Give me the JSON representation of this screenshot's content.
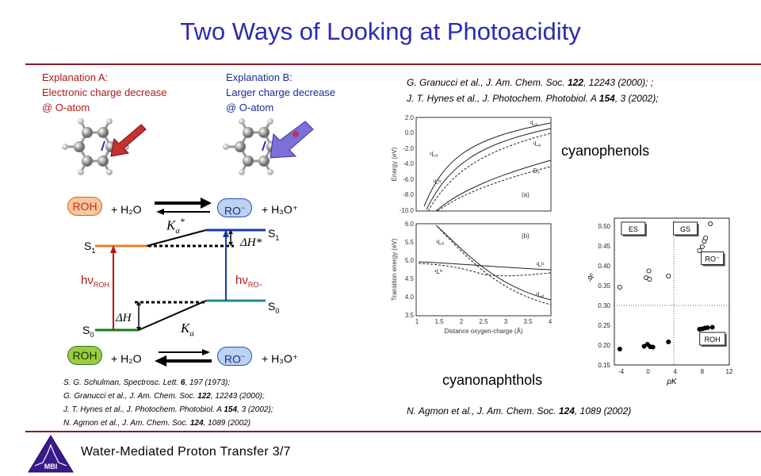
{
  "slide": {
    "title": "Two Ways of Looking at Photoacidity",
    "footer": "Water-Mediated Proton Transfer 3/7",
    "logo_text": "MBI"
  },
  "explanation_a": {
    "line1": "Explanation A:",
    "line2": "Electronic charge decrease",
    "line3": "@ O-atom"
  },
  "explanation_b": {
    "line1": "Explanation B:",
    "line2": "Larger charge decrease",
    "line3": "@ O-atom"
  },
  "references_top": [
    {
      "pre": "G. Granucci et al., J. Am. Chem. Soc. ",
      "vol": "122",
      "post": ", 12243 (2000); ;"
    },
    {
      "pre": "J. T. Hynes et al., J. Photochem. Photobiol. A ",
      "vol": "154",
      "post": ", 3 (2002);"
    }
  ],
  "references_bottom": [
    {
      "pre": "S. G. Schulman, Spectrosc. Lett. ",
      "vol": "6",
      "post": ", 197 (1973);"
    },
    {
      "pre": "G. Granucci et al., J. Am. Chem. Soc. ",
      "vol": "122",
      "post": ", 12243 (2000);"
    },
    {
      "pre": "J. T. Hynes et al., J. Photochem. Photobiol. A ",
      "vol": "154",
      "post": ", 3 (2002);"
    },
    {
      "pre": "N. Agmon et al., J. Am. Chem. Soc. ",
      "vol": "124",
      "post": ", 1089 (2002)"
    }
  ],
  "reference_right": {
    "pre": "N. Agmon et al., J. Am. Chem. Soc. ",
    "vol": "124",
    "post": ", 1089 (2002)"
  },
  "labels": {
    "cyanophenols": "cyanophenols",
    "cyanonaphthols": "cyanonaphthols"
  },
  "forster_cycle": {
    "roh": "ROH",
    "ro_minus": "RO",
    "h2o": "+ H₂O",
    "h3o": "+ H₃O⁺",
    "ka_star": "K",
    "ka": "K",
    "dh_star": "ΔH*",
    "dh": "ΔH",
    "s1": "S",
    "s0": "S",
    "hv_roh": "hν",
    "hv_ro": "hν",
    "sub_roh": "ROH",
    "sub_ro": "RO−",
    "colors": {
      "roh_fill": "#f7c6a0",
      "roh_border": "#e06010",
      "ro_fill": "#bcd2ee",
      "ro_border": "#2050c0",
      "roh_green_fill": "#9ccc3c",
      "roh_green_border": "#2a7a2a"
    }
  },
  "energy_plot": {
    "panel_a": {
      "yticks": [
        "2.0",
        "0.0",
        "-2.0",
        "-4.0",
        "-6.0",
        "-8.0",
        "-10.0"
      ],
      "ylabel": "Energy (eV)",
      "tag": "(a)",
      "curve_labels": [
        "¹Lₐ",
        "¹Lₐ",
        "¹Lₐ",
        "¹Lᵇ",
        "S₀"
      ]
    },
    "panel_b": {
      "yticks": [
        "6.0",
        "5.5",
        "5.0",
        "4.5",
        "4.0",
        "3.5"
      ],
      "ylabel": "Transition energy (eV)",
      "tag": "(b)",
      "curve_labels": [
        "¹Lₐ",
        "¹Lᵇ",
        "¹Lᵇ",
        "¹Lₐ"
      ]
    },
    "xticks": [
      "1",
      "1.5",
      "2",
      "2.5",
      "3",
      "3.5",
      "4"
    ],
    "xlabel": "Distance oxygen-charge (Å)"
  },
  "chart_data": {
    "type": "scatter",
    "xlabel": "pK",
    "ylabel": "-qₒ",
    "xlim": [
      -5,
      12
    ],
    "ylim": [
      0.15,
      0.52
    ],
    "xticks": [
      "-4",
      "0",
      "4",
      "8",
      "12"
    ],
    "yticks": [
      "0.50",
      "0.45",
      "0.40",
      "0.35",
      "0.30",
      "0.25",
      "0.20",
      "0.15"
    ],
    "legend_boxes": [
      "ES",
      "GS",
      "RO⁻",
      "ROH"
    ],
    "series": [
      {
        "name": "ES",
        "marker": "open-circle",
        "points": [
          [
            -4.2,
            0.346
          ],
          [
            -0.3,
            0.37
          ],
          [
            0.1,
            0.387
          ],
          [
            0.2,
            0.366
          ],
          [
            3.0,
            0.374
          ],
          [
            7.6,
            0.438
          ],
          [
            8.0,
            0.448
          ],
          [
            8.3,
            0.462
          ],
          [
            8.5,
            0.47
          ],
          [
            9.2,
            0.506
          ]
        ]
      },
      {
        "name": "GS",
        "marker": "filled-circle",
        "points": [
          [
            -4.2,
            0.19
          ],
          [
            -0.6,
            0.197
          ],
          [
            -0.1,
            0.202
          ],
          [
            0.3,
            0.196
          ],
          [
            0.7,
            0.195
          ],
          [
            3.0,
            0.208
          ],
          [
            7.6,
            0.24
          ],
          [
            8.0,
            0.241
          ],
          [
            8.4,
            0.243
          ],
          [
            8.8,
            0.244
          ],
          [
            9.5,
            0.245
          ]
        ]
      }
    ]
  }
}
